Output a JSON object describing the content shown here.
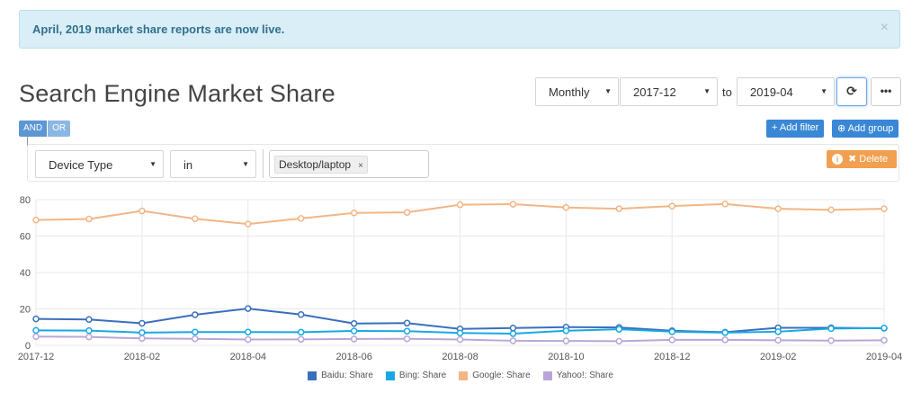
{
  "alert": {
    "message": "April, 2019 market share reports are now live.",
    "close": "×"
  },
  "title": "Search Engine Market Share",
  "controls": {
    "interval": "Monthly",
    "from": "2017-12",
    "to_label": "to",
    "to": "2019-04",
    "refresh_icon": "⟳",
    "more_icon": "•••"
  },
  "filters": {
    "and_label": "AND",
    "or_label": "OR",
    "add_filter": "+ Add filter",
    "add_group": "⊕ Add group",
    "delete_label": "✖ Delete",
    "info_icon": "i",
    "field": "Device Type",
    "operator": "in",
    "value_tag": "Desktop/laptop",
    "value_remove": "×"
  },
  "colors": {
    "baidu": "#3a6fbd",
    "bing": "#1aa8e3",
    "google": "#f3b586",
    "yahoo": "#b9a6d8",
    "grid": "#e8e8e8"
  },
  "chart_data": {
    "type": "line",
    "x": [
      "2017-12",
      "2018-01",
      "2018-02",
      "2018-03",
      "2018-04",
      "2018-05",
      "2018-06",
      "2018-07",
      "2018-08",
      "2018-09",
      "2018-10",
      "2018-11",
      "2018-12",
      "2019-01",
      "2019-02",
      "2019-03",
      "2019-04"
    ],
    "x_tick_labels": [
      "2017-12",
      "2018-02",
      "2018-04",
      "2018-06",
      "2018-08",
      "2018-10",
      "2018-12",
      "2019-02",
      "2019-04"
    ],
    "y_ticks": [
      0,
      20,
      40,
      60,
      80
    ],
    "ylim": [
      0,
      80
    ],
    "series": [
      {
        "name": "Baidu: Share",
        "key": "baidu",
        "values": [
          14.5,
          14.2,
          12.1,
          16.8,
          20.2,
          16.9,
          12.0,
          12.2,
          9.0,
          9.5,
          10.0,
          9.8,
          8.0,
          7.2,
          9.6,
          9.6,
          9.4
        ]
      },
      {
        "name": "Bing: Share",
        "key": "bing",
        "values": [
          8.2,
          8.1,
          7.0,
          7.3,
          7.3,
          7.2,
          7.9,
          7.8,
          6.8,
          6.4,
          8.0,
          8.8,
          7.5,
          7.0,
          7.5,
          9.2,
          9.5
        ]
      },
      {
        "name": "Google: Share",
        "key": "google",
        "values": [
          68.8,
          69.4,
          73.8,
          69.5,
          66.6,
          69.7,
          72.7,
          73.0,
          77.2,
          77.5,
          75.7,
          75.0,
          76.5,
          77.6,
          75.0,
          74.4,
          75.0
        ]
      },
      {
        "name": "Yahoo!: Share",
        "key": "yahoo",
        "values": [
          4.8,
          4.6,
          3.8,
          3.6,
          3.2,
          3.3,
          3.5,
          3.6,
          3.2,
          2.5,
          2.4,
          2.3,
          3.0,
          3.0,
          2.8,
          2.6,
          2.8
        ]
      }
    ],
    "grid": true,
    "legend_position": "bottom"
  }
}
